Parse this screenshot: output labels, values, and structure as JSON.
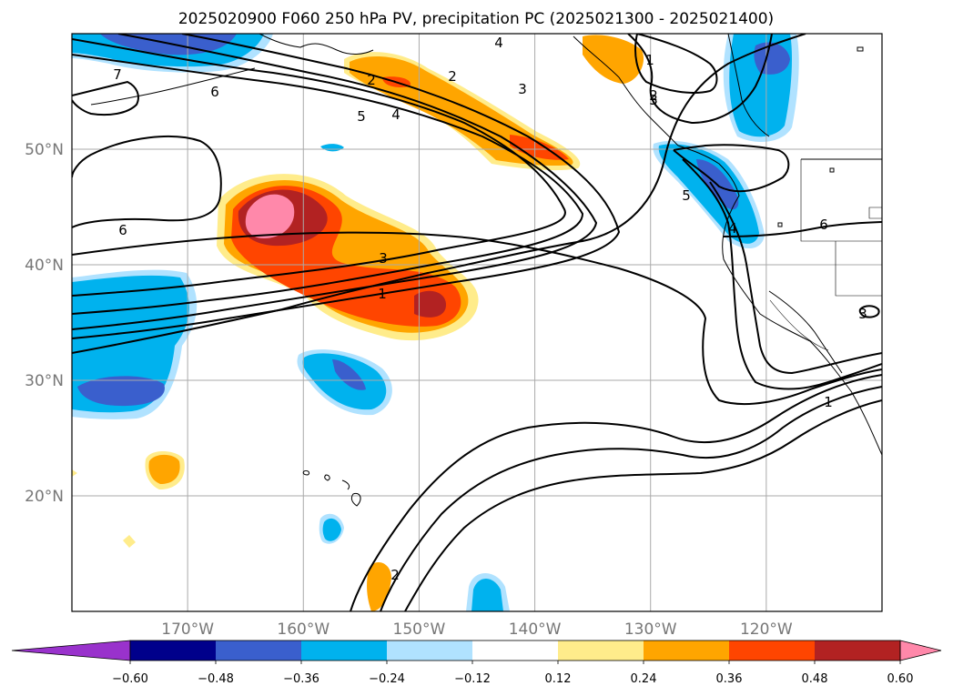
{
  "chart_data": {
    "type": "heatmap",
    "title": "2025020900 F060 250 hPa PV, precipitation PC (2025021300 - 2025021400)",
    "map": {
      "lon_range": [
        -180,
        -110
      ],
      "lat_range": [
        10,
        60
      ],
      "x_ticks": [
        {
          "value": -170,
          "label": "170°W"
        },
        {
          "value": -160,
          "label": "160°W"
        },
        {
          "value": -150,
          "label": "150°W"
        },
        {
          "value": -140,
          "label": "140°W"
        },
        {
          "value": -130,
          "label": "130°W"
        },
        {
          "value": -120,
          "label": "120°W"
        }
      ],
      "y_ticks": [
        {
          "value": 20,
          "label": "20°N"
        },
        {
          "value": 30,
          "label": "30°N"
        },
        {
          "value": 40,
          "label": "40°N"
        },
        {
          "value": 50,
          "label": "50°N"
        }
      ],
      "grid": true,
      "gridline_color": "#aaaaaa"
    },
    "colorbar": {
      "orientation": "horizontal",
      "location": "bottom",
      "extend": "both",
      "tick_labels": [
        "−0.60",
        "−0.48",
        "−0.36",
        "−0.24",
        "−0.12",
        "0.12",
        "0.24",
        "0.36",
        "0.48",
        "0.60"
      ],
      "bins": [
        {
          "range": "< -0.60",
          "color": "#9932cc"
        },
        {
          "range": "-0.60 to -0.48",
          "color": "#00008b"
        },
        {
          "range": "-0.48 to -0.36",
          "color": "#3a5fcd"
        },
        {
          "range": "-0.36 to -0.24",
          "color": "#00b2ee"
        },
        {
          "range": "-0.24 to -0.12",
          "color": "#b0e2ff"
        },
        {
          "range": "-0.12 to 0.12",
          "color": "#ffffff"
        },
        {
          "range": "0.12 to 0.24",
          "color": "#ffec8b"
        },
        {
          "range": "0.24 to 0.36",
          "color": "#ffa500"
        },
        {
          "range": "0.36 to 0.48",
          "color": "#ff4500"
        },
        {
          "range": "0.48 to 0.60",
          "color": "#b22222"
        },
        {
          "range": "> 0.60",
          "color": "#ff88aa"
        }
      ]
    },
    "contour_labels": [
      "7",
      "6",
      "5",
      "4",
      "3",
      "2",
      "1",
      "6",
      "3",
      "1",
      "2",
      "3",
      "4",
      "5",
      "6",
      "2",
      "3",
      "1",
      "2",
      "4"
    ],
    "precip_regions": [
      {
        "name": "central-pacific-positive-max",
        "lon": -162,
        "lat": 44,
        "peak_bin": "> 0.60"
      },
      {
        "name": "central-pacific-positive-tail",
        "lon": -152,
        "lat": 38,
        "peak_bin": "0.48 to 0.60"
      },
      {
        "name": "gulf-of-alaska-positive",
        "lon": -150,
        "lat": 54,
        "peak_bin": "0.36 to 0.48"
      },
      {
        "name": "western-pacific-negative",
        "lon": -175,
        "lat": 32,
        "peak_bin": "-0.48 to -0.36"
      },
      {
        "name": "pacific-northwest-negative",
        "lon": -124,
        "lat": 46,
        "peak_bin": "-0.48 to -0.36"
      },
      {
        "name": "bc-coast-negative",
        "lon": -120,
        "lat": 57,
        "peak_bin": "-0.48 to -0.36"
      },
      {
        "name": "subtropical-negative",
        "lon": -154,
        "lat": 30,
        "peak_bin": "-0.48 to -0.36"
      }
    ]
  }
}
